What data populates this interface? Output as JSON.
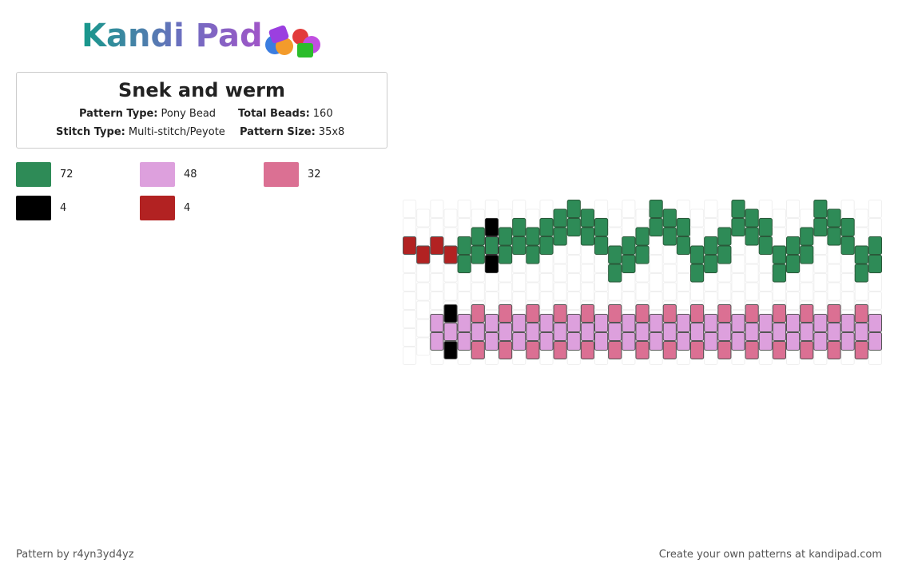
{
  "logo": "Kandi Pad",
  "title": "Snek and werm",
  "details": [
    {
      "label": "Pattern Type:",
      "value": "Pony Bead"
    },
    {
      "label": "Total Beads:",
      "value": 160
    },
    {
      "label": "Stitch Type:",
      "value": "Multi-stitch/Peyote"
    },
    {
      "label": "Pattern Size:",
      "value": "35x8"
    }
  ],
  "colors": [
    {
      "color": "#2e8b57",
      "count": 72
    },
    {
      "color": "#dda0dd",
      "count": 48
    },
    {
      "color": "#db7093",
      "count": 32
    },
    {
      "color": "#000000",
      "count": 4
    },
    {
      "color": "#b22222",
      "count": 4
    }
  ],
  "footer": {
    "author": "Pattern by r4yn3yd4yz",
    "credit": "Create your own patterns at kandipad.com"
  }
}
